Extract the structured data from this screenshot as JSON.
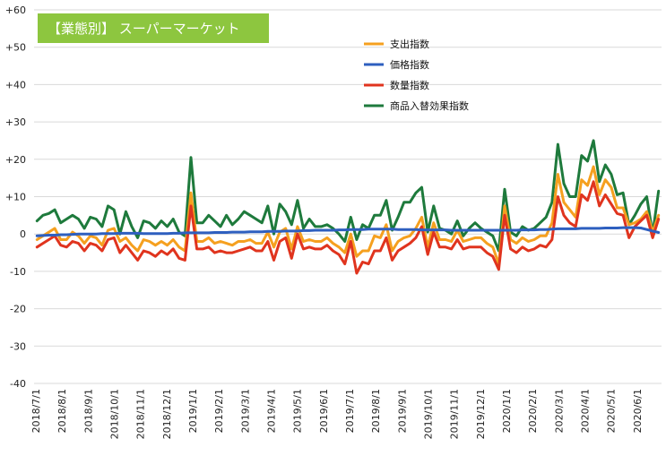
{
  "chart_data": {
    "type": "line",
    "title": "【業態別】 スーパーマーケット",
    "title_box_color": "#8dc63f",
    "ylim": [
      -40,
      60
    ],
    "yticks": [
      "+60",
      "+50",
      "+40",
      "+30",
      "+20",
      "+10",
      "0",
      "-10",
      "-20",
      "-30",
      "-40"
    ],
    "x_labels": [
      "2018/7/1",
      "2018/8/1",
      "2018/9/1",
      "2018/10/1",
      "2018/11/1",
      "2018/12/1",
      "2019/1/1",
      "2019/2/1",
      "2019/3/1",
      "2019/4/1",
      "2019/5/1",
      "2019/6/1",
      "2019/7/1",
      "2019/8/1",
      "2019/9/1",
      "2019/10/1",
      "2019/11/1",
      "2019/12/1",
      "2020/1/1",
      "2020/2/1",
      "2020/3/1",
      "2020/4/1",
      "2020/5/1",
      "2020/6/1"
    ],
    "legend_position": "top-right",
    "grid": "horizontal",
    "series": [
      {
        "name": "商品入替効果指数",
        "color": "#1e7a3c",
        "values": [
          3.5,
          5,
          5.5,
          6.5,
          3,
          4,
          5,
          4,
          1.5,
          4.5,
          4,
          2,
          7.5,
          6.5,
          0,
          6,
          2,
          -1,
          3.5,
          3,
          1.5,
          3.5,
          2,
          4,
          0.5,
          -0.5,
          20.5,
          3,
          3,
          5,
          3.5,
          2,
          5,
          2.5,
          4,
          6,
          5,
          4,
          3,
          7.5,
          0,
          8,
          6,
          2.5,
          9,
          1.5,
          4,
          2,
          2,
          2.5,
          1.5,
          0,
          -2,
          4.5,
          -1.5,
          2.5,
          1.5,
          5,
          5,
          9,
          1,
          4.5,
          8.5,
          8.5,
          11,
          12.5,
          0.5,
          7.5,
          1.5,
          1,
          0,
          3.5,
          -0.5,
          1.5,
          3,
          1.5,
          0.5,
          -0.5,
          -4.5,
          12,
          0.5,
          -0.5,
          2,
          1,
          1.5,
          3,
          4.5,
          8.5,
          24,
          13.5,
          10,
          10,
          21,
          19.5,
          25,
          14,
          18.5,
          16,
          10.5,
          11,
          2.5,
          5,
          8,
          10,
          0,
          11.5
        ]
      },
      {
        "name": "支出指数",
        "color": "#f5a01f",
        "values": [
          -1.5,
          -0.5,
          0.5,
          1.5,
          -1.5,
          -1.5,
          0.5,
          -0.5,
          -2.5,
          -0.5,
          -1,
          -3,
          1,
          1.5,
          -2,
          -1,
          -3,
          -4.5,
          -1.5,
          -2,
          -3,
          -2,
          -3,
          -1.5,
          -3.5,
          -4.5,
          11,
          -2,
          -2,
          -1,
          -2.5,
          -2,
          -2.5,
          -3,
          -2,
          -2,
          -1.5,
          -2.5,
          -2.5,
          0.5,
          -3.5,
          0.5,
          1.5,
          -4,
          2,
          -2,
          -1.5,
          -2,
          -2,
          -1,
          -2.5,
          -3.5,
          -5,
          0,
          -6,
          -4.5,
          -4.5,
          -0.5,
          -1,
          2.5,
          -4.5,
          -2,
          -1,
          -0.5,
          1.5,
          4.5,
          -3.5,
          3,
          -1.5,
          -1.5,
          -2,
          1,
          -2,
          -1.5,
          -1,
          -1,
          -2.5,
          -3.5,
          -8,
          7.5,
          -1.5,
          -2.5,
          -1,
          -2,
          -1.5,
          -0.5,
          -0.5,
          3,
          16,
          8.5,
          6.5,
          4.5,
          14.5,
          13,
          18,
          10.5,
          14.5,
          12.5,
          7,
          7,
          2.5,
          3,
          4,
          6,
          0.5,
          5
        ]
      },
      {
        "name": "数量指数",
        "color": "#e0341e",
        "values": [
          -3.5,
          -2.5,
          -1.5,
          -0.5,
          -3,
          -3.5,
          -2,
          -2.5,
          -4.5,
          -2.5,
          -3,
          -4.5,
          -1.5,
          -1,
          -5,
          -3,
          -5,
          -7,
          -4.5,
          -5,
          -6,
          -4.5,
          -5.5,
          -4,
          -6.5,
          -7,
          7.5,
          -4,
          -4,
          -3.5,
          -5,
          -4.5,
          -5,
          -5,
          -4.5,
          -4,
          -3.5,
          -4.5,
          -4.5,
          -2,
          -7,
          -2,
          -1,
          -6.5,
          0,
          -4,
          -3.5,
          -4,
          -4,
          -3,
          -4.5,
          -5.5,
          -8,
          -2,
          -10.5,
          -7.5,
          -8,
          -4.5,
          -4.5,
          -1,
          -7,
          -4.5,
          -3.5,
          -2.5,
          -1,
          2,
          -5.5,
          0.5,
          -3.5,
          -3.5,
          -4,
          -1.5,
          -4,
          -3.5,
          -3.5,
          -3.5,
          -5,
          -6,
          -9.5,
          5,
          -4,
          -5,
          -3.5,
          -4.5,
          -4,
          -3,
          -3.5,
          -1.5,
          10,
          5,
          3,
          2,
          10.5,
          9,
          14,
          7.5,
          10.5,
          8,
          5.5,
          5,
          -1,
          2,
          3.5,
          5,
          -1,
          4
        ]
      },
      {
        "name": "価格指数",
        "color": "#2e5fbf",
        "values": [
          -0.5,
          -0.4,
          -0.3,
          -0.3,
          -0.2,
          -0.2,
          -0.1,
          0,
          0,
          0,
          0,
          0.1,
          0.1,
          0.1,
          0.2,
          0.2,
          0.2,
          0.2,
          0.1,
          0.1,
          0.1,
          0.1,
          0.1,
          0.2,
          0.2,
          0.3,
          0.3,
          0.3,
          0.3,
          0.3,
          0.4,
          0.4,
          0.4,
          0.5,
          0.5,
          0.5,
          0.6,
          0.6,
          0.6,
          0.7,
          0.7,
          0.7,
          0.8,
          0.8,
          0.8,
          0.9,
          0.9,
          1,
          1,
          1,
          1,
          1.1,
          1.1,
          1.2,
          1.2,
          1.2,
          1.3,
          1.3,
          1.3,
          1.3,
          1.3,
          1.2,
          1.2,
          1.2,
          1.2,
          1.1,
          1.1,
          1.1,
          1.1,
          1.1,
          1,
          1,
          1,
          1,
          1,
          1,
          1,
          1,
          1,
          1,
          1,
          1,
          1.1,
          1.1,
          1.1,
          1.2,
          1.2,
          1.3,
          1.4,
          1.4,
          1.4,
          1.4,
          1.5,
          1.5,
          1.5,
          1.5,
          1.6,
          1.6,
          1.6,
          1.7,
          1.7,
          1.7,
          1.6,
          1.2,
          0.8,
          0.4
        ]
      }
    ],
    "legend_order": [
      "支出指数",
      "価格指数",
      "数量指数",
      "商品入替効果指数"
    ]
  }
}
